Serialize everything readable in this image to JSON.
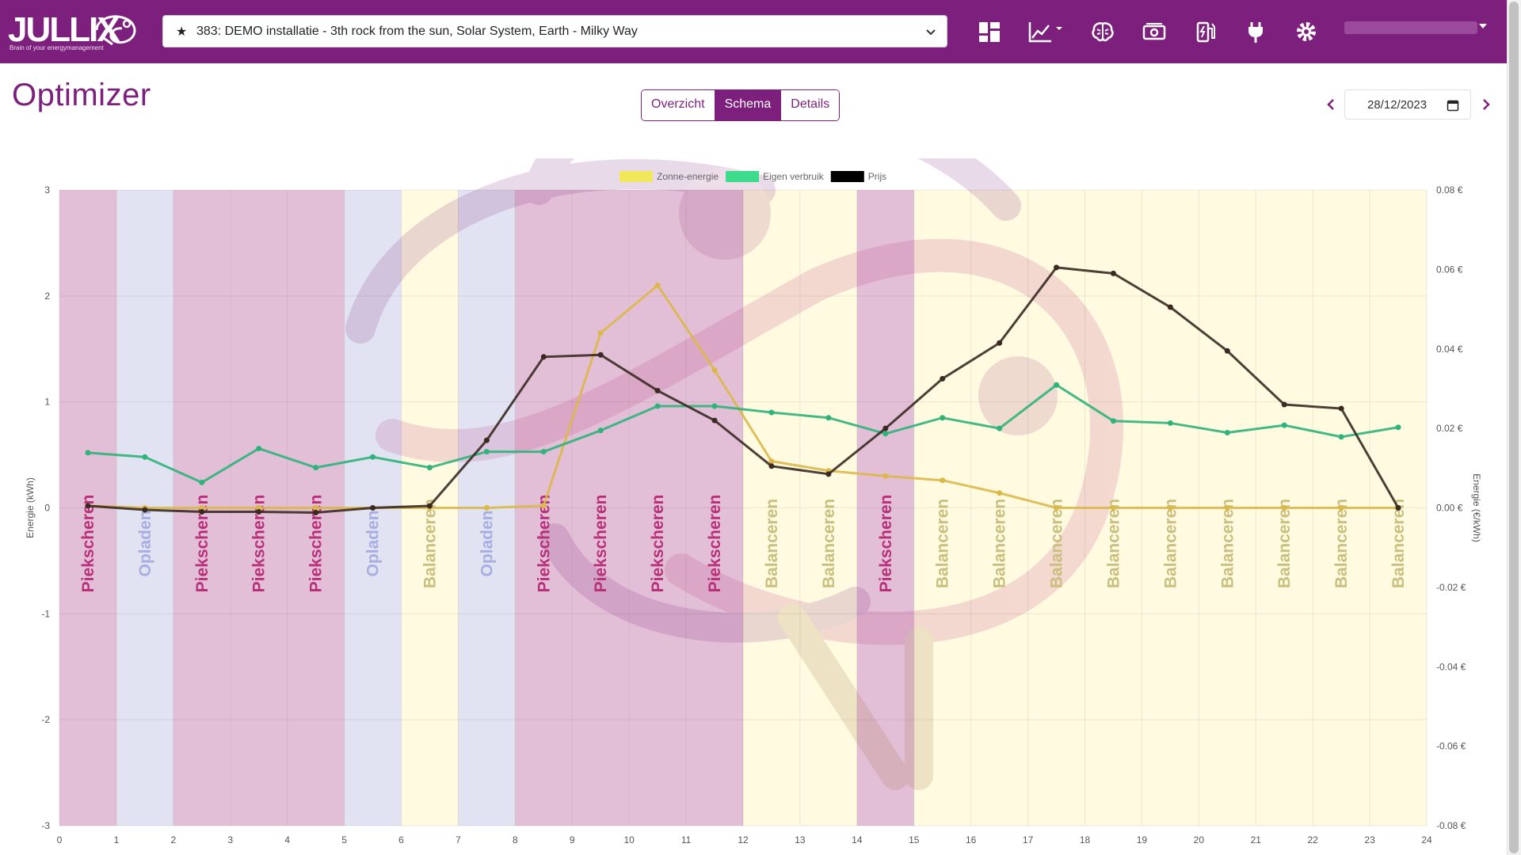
{
  "app": {
    "logo_text": "JULLIX",
    "logo_tagline": "Brain of your energymanagement"
  },
  "header": {
    "installation_select": {
      "star": "★",
      "value": "383: DEMO installatie - 3th rock from the sun, Solar System, Earth - Milky Way"
    },
    "icons": [
      "dashboard-icon",
      "chart-line-icon",
      "brain-icon",
      "money-icon",
      "fuel-pump-icon",
      "plug-icon",
      "gear-icon"
    ]
  },
  "page": {
    "title": "Optimizer",
    "tabs": [
      {
        "label": "Overzicht",
        "active": false
      },
      {
        "label": "Schema",
        "active": true
      },
      {
        "label": "Details",
        "active": false
      }
    ],
    "date": "28/12/2023"
  },
  "colors": {
    "brand": "#7d1f7d",
    "piekscheren": "#e2bfd6",
    "opladen": "#e2e3f2",
    "balanceren": "#fffae0",
    "zonne": "#f0e85a",
    "eigen": "#3cdc8c",
    "prijs": "#000000"
  },
  "chart_data": {
    "type": "line",
    "x_ticks": [
      "0",
      "1",
      "2",
      "3",
      "4",
      "5",
      "6",
      "7",
      "8",
      "9",
      "10",
      "11",
      "12",
      "13",
      "14",
      "15",
      "16",
      "17",
      "18",
      "19",
      "20",
      "21",
      "22",
      "23",
      "24"
    ],
    "y_left_ticks": [
      "3",
      "2",
      "1",
      "0",
      "-1",
      "-2",
      "-3"
    ],
    "y_right_ticks": [
      "0.08 €",
      "0.06 €",
      "0.04 €",
      "0.02 €",
      "0.00 €",
      "-0.02 €",
      "-0.04 €",
      "-0.06 €",
      "-0.08 €"
    ],
    "ylabel_left": "Energie (kWh)",
    "ylabel_right": "Energie (€/kWh)",
    "ylim_left": [
      -3,
      3
    ],
    "ylim_right": [
      -0.08,
      0.08
    ],
    "xlim": [
      0,
      24
    ],
    "legend": [
      {
        "name": "Zonne-energie",
        "color": "#f0e85a"
      },
      {
        "name": "Eigen verbruik",
        "color": "#3cdc8c"
      },
      {
        "name": "Prijs",
        "color": "#000000"
      }
    ],
    "x": [
      0.5,
      1.5,
      2.5,
      3.5,
      4.5,
      5.5,
      6.5,
      7.5,
      8.5,
      9.5,
      10.5,
      11.5,
      12.5,
      13.5,
      14.5,
      15.5,
      16.5,
      17.5,
      18.5,
      19.5,
      20.5,
      21.5,
      22.5,
      23.5
    ],
    "series": [
      {
        "name": "Zonne-energie",
        "axis": "left",
        "values": [
          0.02,
          0,
          0,
          0,
          0,
          0,
          0,
          0,
          0.02,
          1.65,
          2.1,
          1.3,
          0.44,
          0.35,
          0.3,
          0.26,
          0.14,
          0,
          0,
          0,
          0,
          0,
          0,
          0
        ]
      },
      {
        "name": "Eigen verbruik",
        "axis": "left",
        "values": [
          0.52,
          0.48,
          0.24,
          0.56,
          0.38,
          0.48,
          0.38,
          0.53,
          0.53,
          0.73,
          0.96,
          0.96,
          0.9,
          0.85,
          0.7,
          0.85,
          0.75,
          1.16,
          0.82,
          0.8,
          0.71,
          0.78,
          0.67,
          0.76
        ]
      },
      {
        "name": "Prijs",
        "axis": "right",
        "values": [
          0.0005,
          -0.0005,
          -0.001,
          -0.001,
          -0.0012,
          0,
          0.0005,
          0.017,
          0.038,
          0.0385,
          0.0295,
          0.022,
          0.0105,
          0.0085,
          0.02,
          0.0325,
          0.0415,
          0.0605,
          0.059,
          0.0505,
          0.0395,
          0.026,
          0.025,
          0
        ]
      }
    ],
    "bands": [
      "Piekscheren",
      "Opladen",
      "Piekscheren",
      "Piekscheren",
      "Piekscheren",
      "Opladen",
      "Balanceren",
      "Opladen",
      "Piekscheren",
      "Piekscheren",
      "Piekscheren",
      "Piekscheren",
      "Balanceren",
      "Balanceren",
      "Piekscheren",
      "Balanceren",
      "Balanceren",
      "Balanceren",
      "Balanceren",
      "Balanceren",
      "Balanceren",
      "Balanceren",
      "Balanceren",
      "Balanceren"
    ],
    "grid": true,
    "legend_position": "top-center"
  }
}
